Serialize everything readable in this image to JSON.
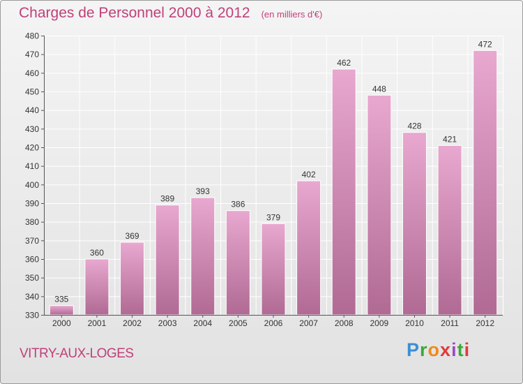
{
  "header": {
    "title": "Charges de Personnel 2000 à 2012",
    "unit": "(en milliers d'€)"
  },
  "footer": {
    "city": "VITRY-AUX-LOGES",
    "logo": [
      "P",
      "r",
      "o",
      "x",
      "i",
      "t",
      "i"
    ]
  },
  "colors": {
    "title": "#c0407a",
    "bar_top": "#e8a8cf",
    "bar_bottom": "#b06a94",
    "grid": "#ffffff",
    "axis": "#555555"
  },
  "chart_data": {
    "type": "bar",
    "title": "Charges de Personnel 2000 à 2012",
    "subtitle": "(en milliers d'€)",
    "xlabel": "",
    "ylabel": "",
    "categories": [
      "2000",
      "2001",
      "2002",
      "2003",
      "2004",
      "2005",
      "2006",
      "2007",
      "2008",
      "2009",
      "2010",
      "2011",
      "2012"
    ],
    "values": [
      335,
      360,
      369,
      389,
      393,
      386,
      379,
      402,
      462,
      448,
      428,
      421,
      472
    ],
    "ylim": [
      330,
      480
    ],
    "yticks": [
      330,
      340,
      350,
      360,
      370,
      380,
      390,
      400,
      410,
      420,
      430,
      440,
      450,
      460,
      470,
      480
    ],
    "grid": true,
    "legend": "none",
    "data_labels": true
  }
}
